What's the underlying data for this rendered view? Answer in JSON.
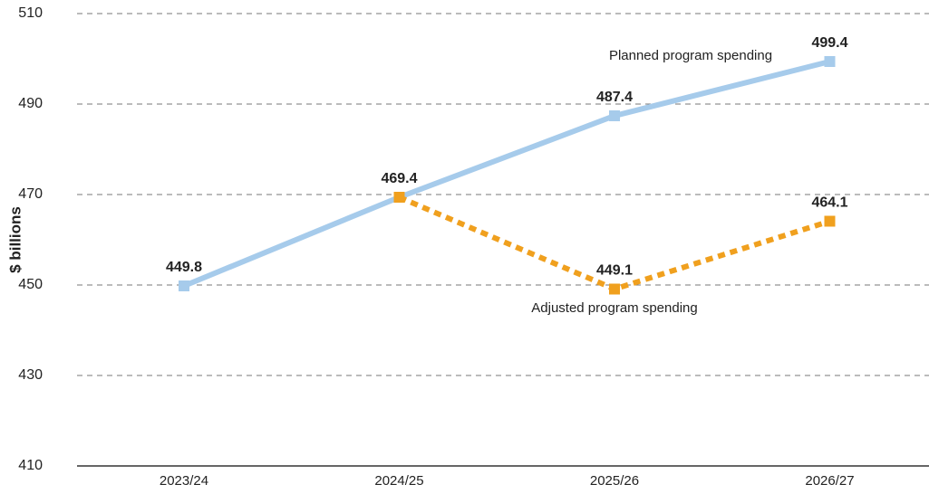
{
  "chart_data": {
    "type": "line",
    "y_label": "$ billions",
    "categories": [
      "2023/24",
      "2024/25",
      "2025/26",
      "2026/27"
    ],
    "series": [
      {
        "name": "Planned program spending",
        "color": "#a6cbeb",
        "dashed": false,
        "values": [
          449.8,
          469.4,
          487.4,
          499.4
        ]
      },
      {
        "name": "Adjusted program spending",
        "color": "#f0a01e",
        "dashed": true,
        "values": [
          null,
          469.4,
          449.1,
          464.1
        ]
      }
    ],
    "ylim": [
      410,
      510
    ],
    "yticks": [
      410,
      430,
      450,
      470,
      490,
      510
    ],
    "grid": true
  }
}
